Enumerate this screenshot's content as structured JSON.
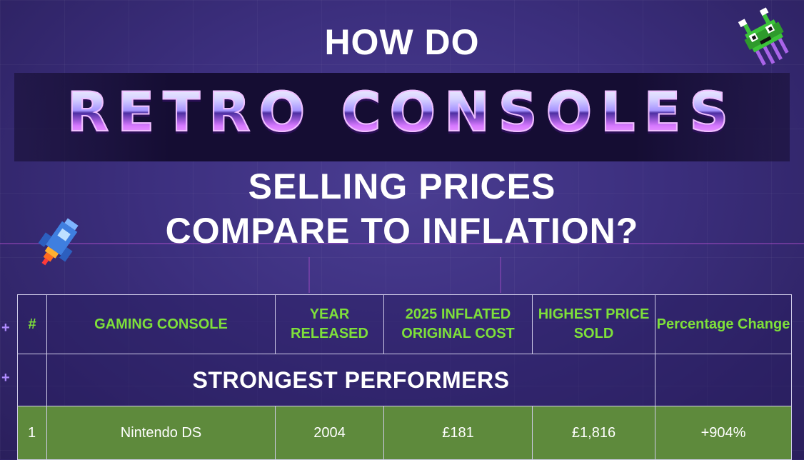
{
  "header": {
    "line1": "HOW DO",
    "highlight": "RETRO CONSOLES",
    "line2": "SELLING PRICES",
    "line3": "COMPARE TO INFLATION?"
  },
  "decorations": {
    "alien_icon": "pixel-alien-icon",
    "rocket_icon": "pixel-rocket-icon",
    "accent_green": "#7ee03a",
    "row_green": "#5e8a3c"
  },
  "table": {
    "columns": [
      "#",
      "GAMING CONSOLE",
      "YEAR RELEASED",
      "2025 INFLATED ORIGINAL COST",
      "HIGHEST PRICE SOLD",
      "Percentage Change"
    ],
    "section_title": "STRONGEST PERFORMERS",
    "rows": [
      {
        "rank": "1",
        "console": "Nintendo DS",
        "year": "2004",
        "inflated_cost": "£181",
        "highest_price": "£1,816",
        "change": "+904%"
      }
    ]
  }
}
